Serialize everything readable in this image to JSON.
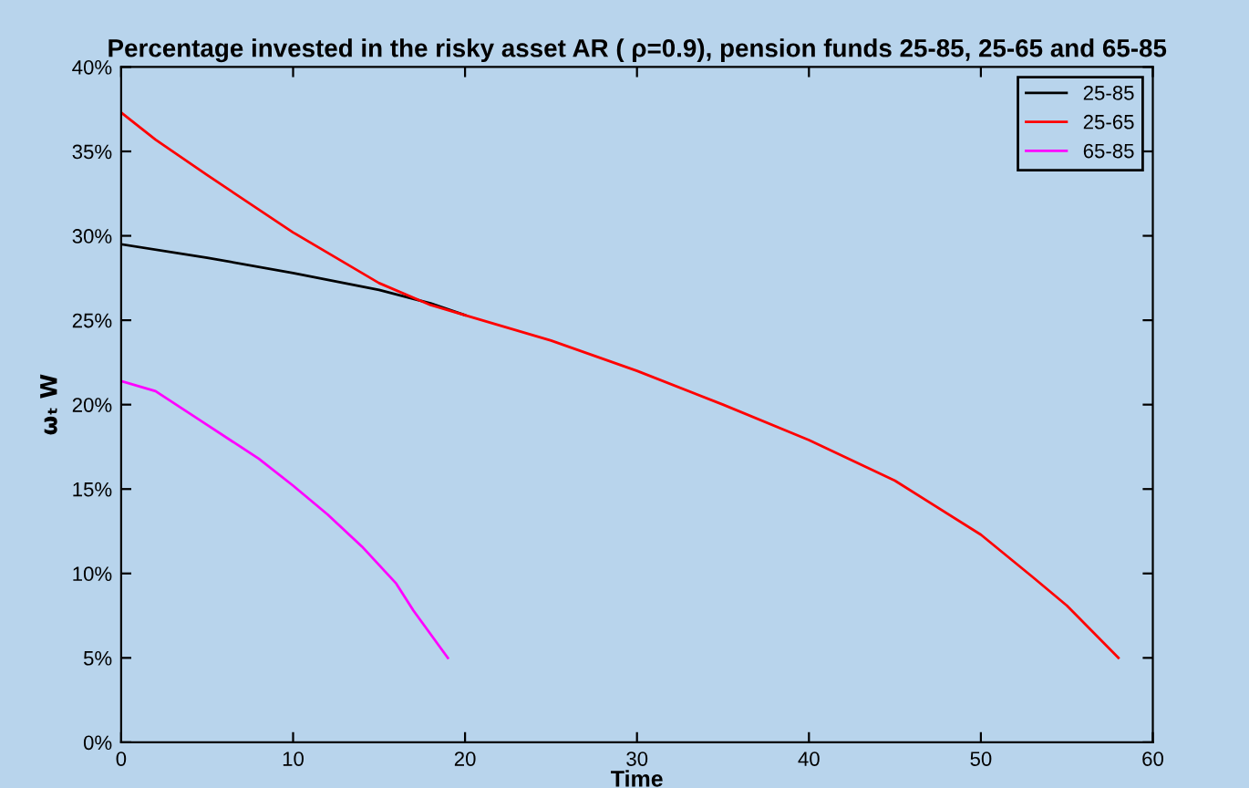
{
  "chart_data": {
    "type": "line",
    "title": "Percentage invested in the risky asset AR ( ρ=0.9), pension funds 25-85, 25-65 and 65-85",
    "xlabel": "Time",
    "ylabel": "ωₜ W",
    "xlim": [
      0,
      60
    ],
    "xticks": [
      0,
      10,
      20,
      30,
      40,
      50,
      60
    ],
    "ylim": [
      0,
      40
    ],
    "yticks": [
      {
        "value": 0,
        "label": "0%"
      },
      {
        "value": 5,
        "label": "5%"
      },
      {
        "value": 10,
        "label": "10%"
      },
      {
        "value": 15,
        "label": "15%"
      },
      {
        "value": 20,
        "label": "20%"
      },
      {
        "value": 25,
        "label": "25%"
      },
      {
        "value": 30,
        "label": "30%"
      },
      {
        "value": 35,
        "label": "35%"
      },
      {
        "value": 40,
        "label": "40%"
      }
    ],
    "grid": false,
    "legend": "top right",
    "series": [
      {
        "name": "25-85",
        "color": "#000000",
        "x": [
          0,
          5,
          10,
          15,
          18,
          20
        ],
        "values": [
          29.5,
          28.7,
          27.8,
          26.8,
          26.0,
          25.3
        ]
      },
      {
        "name": "25-65",
        "color": "#ff0000",
        "x": [
          0,
          2,
          5,
          10,
          15,
          18,
          20,
          25,
          30,
          35,
          40,
          45,
          50,
          53,
          55,
          58
        ],
        "values": [
          37.3,
          35.7,
          33.6,
          30.2,
          27.2,
          25.9,
          25.3,
          23.8,
          22.0,
          20.0,
          17.9,
          15.5,
          12.3,
          9.8,
          8.1,
          5.0
        ]
      },
      {
        "name": "65-85",
        "color": "#ff00ff",
        "x": [
          0,
          2,
          5,
          8,
          10,
          12,
          14,
          16,
          17,
          19
        ],
        "values": [
          21.4,
          20.8,
          18.8,
          16.8,
          15.2,
          13.5,
          11.6,
          9.4,
          7.8,
          5.0
        ]
      }
    ]
  }
}
